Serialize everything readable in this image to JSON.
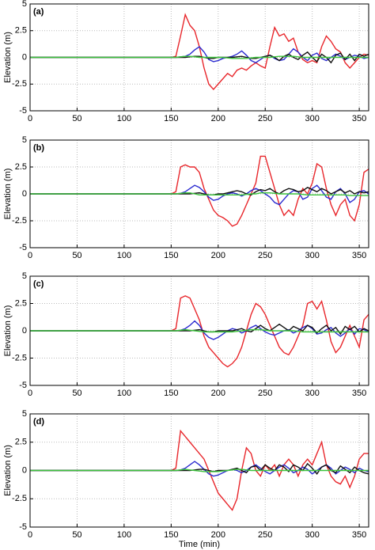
{
  "chart_data": [
    {
      "type": "line",
      "title": "(a)",
      "ylabel": "Elevation (m)",
      "x": [
        0,
        140,
        145,
        150,
        155,
        160,
        165,
        170,
        175,
        180,
        185,
        190,
        195,
        200,
        205,
        210,
        215,
        220,
        225,
        230,
        235,
        240,
        245,
        250,
        255,
        260,
        265,
        270,
        275,
        280,
        285,
        290,
        295,
        300,
        305,
        310,
        315,
        320,
        325,
        330,
        335,
        340,
        345,
        350,
        355,
        360
      ],
      "xlim": [
        0,
        360
      ],
      "xticks": [
        0,
        50,
        100,
        150,
        200,
        250,
        300,
        350
      ],
      "ylim": [
        -5,
        5
      ],
      "yticks": [
        -5,
        -2.5,
        0,
        2.5,
        5
      ],
      "grid": true,
      "series": [
        {
          "color": "#e8262b",
          "values": [
            0,
            0,
            0,
            0,
            0.1,
            2,
            4,
            3,
            2.5,
            1,
            -1,
            -2.5,
            -3,
            -2.5,
            -2,
            -1.5,
            -1.8,
            -1.2,
            -1,
            -1.2,
            -0.8,
            -0.5,
            -0.8,
            -1,
            1,
            2.8,
            2,
            2.2,
            1.5,
            1.8,
            0.5,
            -0.2,
            -0.5,
            -0.3,
            -0.5,
            1,
            2,
            1.5,
            0.8,
            0.5,
            -0.5,
            -1,
            -0.5,
            0,
            0.3,
            0.2
          ]
        },
        {
          "color": "#2b2bd0",
          "values": [
            0,
            0,
            0,
            0,
            0,
            0.05,
            0.1,
            0.3,
            0.7,
            1,
            0.5,
            -0.2,
            -0.4,
            -0.3,
            -0.1,
            0,
            0.1,
            0.3,
            0.6,
            0.2,
            -0.3,
            -0.5,
            -0.2,
            0.1,
            0.2,
            -0.1,
            -0.3,
            -0.2,
            0.3,
            0.8,
            0.5,
            0,
            -0.3,
            0.2,
            0.4,
            -0.1,
            -0.3,
            0,
            0.3,
            0.1,
            -0.2,
            0,
            0.2,
            0.1,
            -0.1,
            0
          ]
        },
        {
          "color": "#111111",
          "values": [
            0,
            0,
            0,
            0,
            0,
            0,
            0,
            0.05,
            0.1,
            0.1,
            0,
            -0.1,
            -0.1,
            0,
            0,
            0,
            0,
            0.05,
            0.1,
            0,
            -0.1,
            -0.1,
            0,
            0.1,
            0.2,
            0,
            -0.3,
            0.1,
            0.3,
            0,
            -0.2,
            0.2,
            0.5,
            0,
            -0.4,
            0.3,
            0,
            -0.5,
            0.2,
            0.4,
            -0.2,
            0.3,
            -0.3,
            0.3,
            0.1,
            0.3
          ]
        },
        {
          "color": "#3cc43c",
          "values": [
            0,
            0,
            0,
            0,
            0,
            0.05,
            0.1,
            0.1,
            0.05,
            0,
            0,
            0,
            0,
            0,
            0,
            -0.05,
            -0.1,
            -0.1,
            -0.1,
            -0.1,
            -0.05,
            0,
            0,
            0,
            0,
            0.05,
            0.1,
            0.1,
            0.1,
            0.1,
            0.05,
            0,
            0,
            0,
            0,
            0,
            0,
            0,
            0,
            0,
            0,
            0,
            0,
            0,
            0,
            0
          ]
        }
      ]
    },
    {
      "type": "line",
      "title": "(b)",
      "ylabel": "Elevation (m)",
      "x": [
        0,
        140,
        145,
        150,
        155,
        160,
        165,
        170,
        175,
        180,
        185,
        190,
        195,
        200,
        205,
        210,
        215,
        220,
        225,
        230,
        235,
        240,
        245,
        250,
        255,
        260,
        265,
        270,
        275,
        280,
        285,
        290,
        295,
        300,
        305,
        310,
        315,
        320,
        325,
        330,
        335,
        340,
        345,
        350,
        355,
        360
      ],
      "xlim": [
        0,
        360
      ],
      "xticks": [
        0,
        50,
        100,
        150,
        200,
        250,
        300,
        350
      ],
      "ylim": [
        -5,
        5
      ],
      "yticks": [
        -5,
        -2.5,
        0,
        2.5,
        5
      ],
      "grid": true,
      "series": [
        {
          "color": "#e8262b",
          "values": [
            0,
            0,
            0,
            0,
            0.2,
            2.5,
            2.7,
            2.5,
            2.5,
            2,
            0.5,
            -0.5,
            -1.5,
            -2,
            -2.2,
            -2.5,
            -3,
            -2.8,
            -2,
            -1,
            0,
            1,
            3.5,
            3.5,
            2,
            0.5,
            -1,
            -2,
            -1.5,
            -2,
            -0.5,
            0.5,
            0,
            1,
            2.8,
            2.5,
            0.5,
            -1,
            -2,
            -1,
            -0.5,
            -2,
            -2.5,
            -1,
            2,
            2.3
          ]
        },
        {
          "color": "#2b2bd0",
          "values": [
            0,
            0,
            0,
            0,
            0,
            0.05,
            0.2,
            0.5,
            0.8,
            0.6,
            0.2,
            -0.3,
            -0.6,
            -0.5,
            -0.2,
            0,
            0.1,
            0,
            -0.2,
            0,
            0.3,
            0.5,
            0.3,
            0,
            -0.3,
            -0.8,
            -1,
            -0.5,
            0,
            0.3,
            0.2,
            -0.5,
            -0.3,
            0.5,
            0.8,
            0.3,
            -0.3,
            -0.5,
            0.2,
            0.5,
            0,
            -0.8,
            -0.5,
            0.2,
            0.3,
            0
          ]
        },
        {
          "color": "#111111",
          "values": [
            0,
            0,
            0,
            0,
            0,
            0,
            0,
            0,
            0.05,
            0.1,
            0,
            -0.1,
            -0.1,
            0,
            0,
            0.1,
            0.2,
            0.3,
            0.2,
            0,
            -0.1,
            0.2,
            0.4,
            0.3,
            0.5,
            0.2,
            0,
            0.3,
            0.5,
            0.4,
            0.2,
            0.3,
            0.6,
            0.4,
            0.2,
            0.5,
            0.3,
            0,
            0.2,
            0.4,
            0.1,
            0.3,
            0,
            0.2,
            0.1,
            0.2
          ]
        },
        {
          "color": "#3cc43c",
          "values": [
            0,
            0,
            0,
            0,
            0,
            0.05,
            0.1,
            0.1,
            0,
            -0.1,
            -0.1,
            -0.1,
            -0.1,
            -0.1,
            -0.1,
            -0.1,
            -0.1,
            -0.1,
            -0.1,
            -0.05,
            0,
            0,
            0.1,
            0.1,
            0.1,
            0.05,
            0,
            0,
            0,
            0,
            0,
            -0.05,
            -0.1,
            -0.1,
            -0.1,
            -0.1,
            -0.1,
            -0.1,
            -0.1,
            -0.1,
            -0.1,
            -0.15,
            -0.15,
            -0.15,
            -0.15,
            -0.15
          ]
        }
      ]
    },
    {
      "type": "line",
      "title": "(c)",
      "ylabel": "Elevation (m)",
      "x": [
        0,
        140,
        145,
        150,
        155,
        160,
        165,
        170,
        175,
        180,
        185,
        190,
        195,
        200,
        205,
        210,
        215,
        220,
        225,
        230,
        235,
        240,
        245,
        250,
        255,
        260,
        265,
        270,
        275,
        280,
        285,
        290,
        295,
        300,
        305,
        310,
        315,
        320,
        325,
        330,
        335,
        340,
        345,
        350,
        355,
        360
      ],
      "xlim": [
        0,
        360
      ],
      "xticks": [
        0,
        50,
        100,
        150,
        200,
        250,
        300,
        350
      ],
      "ylim": [
        -5,
        5
      ],
      "yticks": [
        -5,
        -2.5,
        0,
        2.5,
        5
      ],
      "grid": true,
      "series": [
        {
          "color": "#e8262b",
          "values": [
            0,
            0,
            0,
            0,
            0.2,
            3,
            3.2,
            3,
            2,
            1,
            -0.5,
            -1.5,
            -2,
            -2.5,
            -3,
            -3.3,
            -3,
            -2.5,
            -1.5,
            0,
            1.5,
            2.5,
            2.2,
            1.5,
            0.5,
            -0.5,
            -1.5,
            -2,
            -2.2,
            -1.5,
            -0.5,
            0.5,
            2.5,
            2.7,
            2,
            2.7,
            1,
            -1,
            -2,
            -1.5,
            -0.5,
            0.5,
            -0.5,
            -1.5,
            1,
            1.5
          ]
        },
        {
          "color": "#2b2bd0",
          "values": [
            0,
            0,
            0,
            0,
            0,
            0.05,
            0.2,
            0.5,
            0.9,
            0.5,
            -0.2,
            -0.6,
            -0.8,
            -0.6,
            -0.3,
            0,
            0.2,
            0.1,
            -0.2,
            0,
            0.3,
            0.5,
            0.2,
            -0.1,
            -0.3,
            -0.4,
            -0.2,
            0,
            0.1,
            -0.2,
            0,
            0.3,
            0.5,
            0.2,
            -0.3,
            -0.2,
            0.1,
            0.3,
            -0.2,
            -0.5,
            -0.2,
            0.2,
            -0.3,
            0.2,
            0.1,
            -0.1
          ]
        },
        {
          "color": "#111111",
          "values": [
            0,
            0,
            0,
            0,
            0,
            0,
            0,
            0,
            0.05,
            0.1,
            0,
            -0.1,
            -0.1,
            0,
            0,
            0,
            0,
            0.1,
            0.2,
            0,
            -0.1,
            0.2,
            0.5,
            0.2,
            0,
            0.3,
            0.6,
            0.3,
            0,
            0.4,
            0.2,
            0,
            0.5,
            0.3,
            -0.2,
            0.2,
            0.5,
            0,
            0.3,
            -0.3,
            0.4,
            0.1,
            0.4,
            -0.1,
            0.2,
            0
          ]
        },
        {
          "color": "#3cc43c",
          "values": [
            0,
            0,
            0,
            0,
            0,
            0.05,
            0.1,
            0.05,
            0,
            -0.05,
            -0.1,
            -0.1,
            -0.1,
            -0.1,
            -0.1,
            -0.1,
            -0.1,
            -0.05,
            0,
            0.05,
            0.1,
            0.1,
            0.1,
            0.05,
            0,
            0,
            0,
            0,
            0,
            0,
            -0.05,
            -0.1,
            -0.1,
            -0.1,
            -0.1,
            -0.1,
            -0.1,
            -0.1,
            -0.1,
            -0.1,
            -0.1,
            -0.1,
            -0.1,
            -0.1,
            -0.1,
            -0.1
          ]
        }
      ]
    },
    {
      "type": "line",
      "title": "(d)",
      "ylabel": "Elevation (m)",
      "xlabel": "Time (min)",
      "x": [
        0,
        140,
        145,
        150,
        155,
        160,
        165,
        170,
        175,
        180,
        185,
        190,
        195,
        200,
        205,
        210,
        215,
        220,
        225,
        230,
        235,
        240,
        245,
        250,
        255,
        260,
        265,
        270,
        275,
        280,
        285,
        290,
        295,
        300,
        305,
        310,
        315,
        320,
        325,
        330,
        335,
        340,
        345,
        350,
        355,
        360
      ],
      "xlim": [
        0,
        360
      ],
      "xticks": [
        0,
        50,
        100,
        150,
        200,
        250,
        300,
        350
      ],
      "ylim": [
        -5,
        5
      ],
      "yticks": [
        -5,
        -2.5,
        0,
        2.5,
        5
      ],
      "grid": true,
      "series": [
        {
          "color": "#e8262b",
          "values": [
            0,
            0,
            0,
            0,
            0.2,
            3.5,
            3,
            2.5,
            2,
            1.5,
            1,
            0,
            -1,
            -2,
            -2.5,
            -3,
            -3.5,
            -2.5,
            0,
            2,
            1.5,
            0,
            -0.5,
            0.5,
            0,
            0.5,
            -0.5,
            0.5,
            1,
            0.5,
            -0.5,
            0.5,
            1,
            0.5,
            1.5,
            2.5,
            0.5,
            -0.5,
            -1,
            -1.2,
            -0.5,
            -1.5,
            -0.5,
            1,
            1.5,
            1.5
          ]
        },
        {
          "color": "#2b2bd0",
          "values": [
            0,
            0,
            0,
            0,
            0,
            0.05,
            0.2,
            0.5,
            0.8,
            0.5,
            0.1,
            -0.3,
            -0.5,
            -0.4,
            -0.2,
            0,
            0.1,
            0,
            -0.2,
            0,
            0.3,
            0.5,
            0.2,
            -0.1,
            -0.3,
            0,
            0.3,
            0.5,
            0.2,
            -0.2,
            0,
            0.3,
            0.1,
            -0.3,
            0,
            0.3,
            0.5,
            0.2,
            -0.3,
            0,
            0.3,
            0.1,
            -0.2,
            0.2,
            0,
            -0.1
          ]
        },
        {
          "color": "#111111",
          "values": [
            0,
            0,
            0,
            0,
            0,
            0,
            0,
            0,
            0.05,
            0.1,
            0.1,
            0,
            -0.1,
            0,
            0,
            0,
            0.1,
            0.2,
            0,
            -0.2,
            0.3,
            0.4,
            0,
            0.5,
            0.2,
            0,
            0.5,
            0.3,
            -0.1,
            0.5,
            0.3,
            0,
            0.6,
            0.2,
            -0.3,
            0.3,
            0.5,
            0,
            -0.2,
            0.4,
            0.1,
            -0.2,
            0.3,
            0,
            -0.2,
            -0.3
          ]
        },
        {
          "color": "#3cc43c",
          "values": [
            0,
            0,
            0,
            0,
            0,
            0.05,
            0.1,
            0.05,
            0,
            -0.05,
            -0.1,
            -0.1,
            -0.1,
            -0.1,
            -0.05,
            0,
            0.05,
            0.1,
            0.1,
            0.05,
            0,
            0,
            0,
            0,
            0,
            0,
            0,
            0,
            0,
            0,
            0,
            0,
            0,
            0,
            0,
            0,
            0,
            0,
            0,
            0,
            0,
            0,
            0,
            0,
            0,
            0
          ]
        }
      ]
    }
  ]
}
